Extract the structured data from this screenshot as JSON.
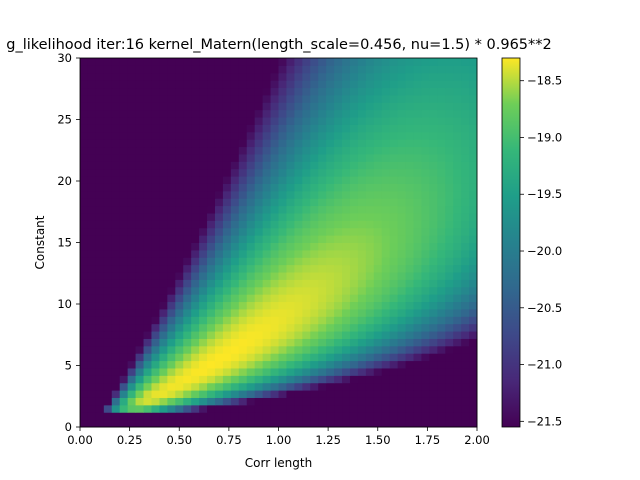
{
  "chart_data": {
    "type": "heatmap",
    "title": "g_likelihood iter:16 kernel_Matern(length_scale=0.456, nu=1.5) * 0.965**2",
    "xlabel": "Corr length",
    "ylabel": "Constant",
    "xlim": [
      0.0,
      2.0
    ],
    "ylim": [
      0,
      30
    ],
    "x_ticks": [
      0.0,
      0.25,
      0.5,
      0.75,
      1.0,
      1.25,
      1.5,
      1.75,
      2.0
    ],
    "x_tick_labels": [
      "0.00",
      "0.25",
      "0.50",
      "0.75",
      "1.00",
      "1.25",
      "1.50",
      "1.75",
      "2.00"
    ],
    "y_ticks": [
      0,
      5,
      10,
      15,
      20,
      25,
      30
    ],
    "y_tick_labels": [
      "0",
      "5",
      "10",
      "15",
      "20",
      "25",
      "30"
    ],
    "colormap": "viridis",
    "color_range": [
      -21.55,
      -18.3
    ],
    "colorbar_ticks": [
      -18.5,
      -19.0,
      -19.5,
      -20.0,
      -20.5,
      -21.0,
      -21.5
    ],
    "colorbar_tick_labels": [
      "−18.5",
      "−19.0",
      "−19.5",
      "−20.0",
      "−20.5",
      "−21.0",
      "−21.5"
    ],
    "grid": false,
    "peak": {
      "x": 0.7,
      "y": 5.5,
      "value": -18.3
    },
    "notes_grid_resolution": [
      50,
      50
    ]
  }
}
